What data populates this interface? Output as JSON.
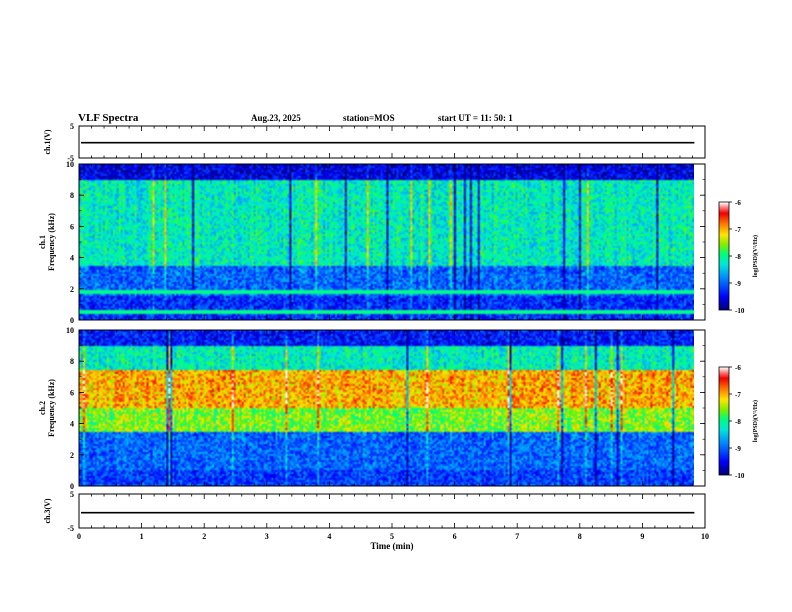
{
  "header": {
    "title": "VLF Spectra",
    "date": "Aug.23, 2025",
    "station": "station=MOS",
    "start": "start  UT =   11: 50: 1"
  },
  "chart_data": [
    {
      "type": "line",
      "name": "ch1-voltage",
      "ylabel": "ch.1(V)",
      "ylim": [
        -5,
        5
      ],
      "ytick_labels": [
        "5",
        "-5"
      ],
      "series_level": -0.2,
      "xlim": [
        0,
        10
      ]
    },
    {
      "type": "heatmap",
      "name": "ch1-spectrogram",
      "ylabel": "ch.1\nFrequency (kHz)",
      "ylim": [
        0,
        10
      ],
      "ytick_labels": [
        "0",
        "2",
        "4",
        "6",
        "8",
        "10"
      ],
      "xlim": [
        0,
        9.83
      ],
      "colorbar": {
        "label": "log(PSD)(V²/Hz)",
        "range": [
          -10,
          -6
        ],
        "ticks": [
          "-6",
          "-7",
          "-8",
          "-9",
          "-10"
        ]
      },
      "bands": [
        {
          "f_range": [
            0,
            1.5
          ],
          "level": -9.3
        },
        {
          "f_range": [
            1.5,
            3.5
          ],
          "level": -9.0
        },
        {
          "f_range": [
            3.5,
            9.0
          ],
          "level": -8.2
        },
        {
          "f_range": [
            9.0,
            10
          ],
          "level": -9.6
        }
      ],
      "lines_khz": [
        0.5,
        1.8
      ]
    },
    {
      "type": "heatmap",
      "name": "ch2-spectrogram",
      "ylabel": "ch.2\nFrequency (kHz)",
      "ylim": [
        0,
        10
      ],
      "ytick_labels": [
        "0",
        "2",
        "4",
        "6",
        "8",
        "10"
      ],
      "xlim": [
        0,
        9.83
      ],
      "colorbar": {
        "label": "log(PSD)(V²/Hz)",
        "range": [
          -10,
          -6
        ],
        "ticks": [
          "-6",
          "-7",
          "-8",
          "-9",
          "-10"
        ]
      },
      "bands": [
        {
          "f_range": [
            0,
            1.0
          ],
          "level": -9.2
        },
        {
          "f_range": [
            1.0,
            3.5
          ],
          "level": -9.0
        },
        {
          "f_range": [
            3.5,
            5.0
          ],
          "level": -7.6
        },
        {
          "f_range": [
            5.0,
            7.5
          ],
          "level": -7.0
        },
        {
          "f_range": [
            7.5,
            9.0
          ],
          "level": -8.2
        },
        {
          "f_range": [
            9.0,
            10
          ],
          "level": -9.4
        }
      ]
    },
    {
      "type": "line",
      "name": "ch3-voltage",
      "ylabel": "ch.3(V)",
      "ylim": [
        -5,
        5
      ],
      "ytick_labels": [
        "5",
        "-5"
      ],
      "series_level": -0.5,
      "xlim": [
        0,
        10
      ]
    }
  ],
  "x_axis": {
    "label": "Time  (min)",
    "ticks": [
      0,
      1,
      2,
      3,
      4,
      5,
      6,
      7,
      8,
      9,
      10
    ],
    "tick_labels": [
      "0",
      "1",
      "2",
      "3",
      "4",
      "5",
      "6",
      "7",
      "8",
      "9",
      "10"
    ]
  },
  "colors": {
    "axis": "#000000",
    "background": "#ffffff",
    "colormap": "jet-with-white-top"
  }
}
